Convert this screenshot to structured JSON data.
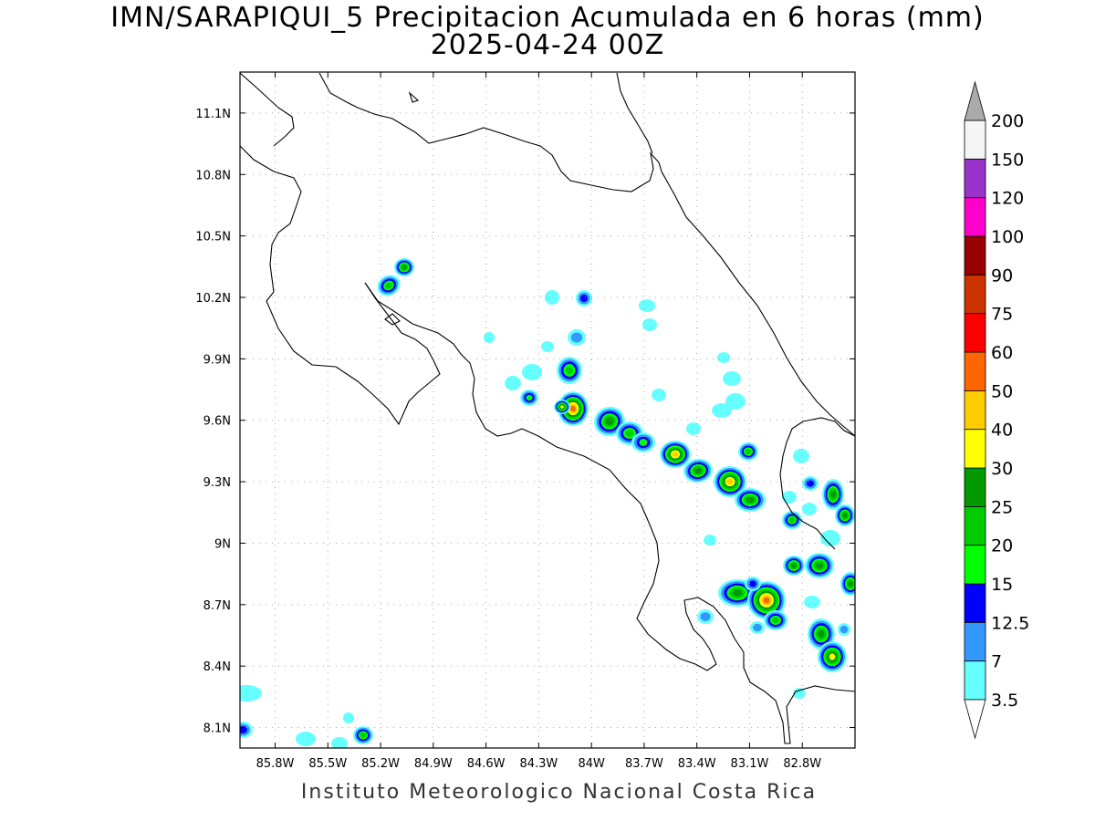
{
  "title": {
    "line1": "IMN/SARAPIQUI_5 Precipitacion Acumulada en 6 horas (mm)",
    "line2": "2025-04-24 00Z"
  },
  "footer": "Instituto Meteorologico Nacional Costa Rica",
  "map": {
    "lon_range": [
      -86.0,
      -82.5
    ],
    "lat_range": [
      8.0,
      11.3
    ],
    "lon_ticks": [
      {
        "value": -85.8,
        "label": "85.8W"
      },
      {
        "value": -85.5,
        "label": "85.5W"
      },
      {
        "value": -85.2,
        "label": "85.2W"
      },
      {
        "value": -84.9,
        "label": "84.9W"
      },
      {
        "value": -84.6,
        "label": "84.6W"
      },
      {
        "value": -84.3,
        "label": "84.3W"
      },
      {
        "value": -84.0,
        "label": "84W"
      },
      {
        "value": -83.7,
        "label": "83.7W"
      },
      {
        "value": -83.4,
        "label": "83.4W"
      },
      {
        "value": -83.1,
        "label": "83.1W"
      },
      {
        "value": -82.8,
        "label": "82.8W"
      }
    ],
    "lat_ticks": [
      {
        "value": 8.1,
        "label": "8.1N"
      },
      {
        "value": 8.4,
        "label": "8.4N"
      },
      {
        "value": 8.7,
        "label": "8.7N"
      },
      {
        "value": 9.0,
        "label": "9N"
      },
      {
        "value": 9.3,
        "label": "9.3N"
      },
      {
        "value": 9.6,
        "label": "9.6N"
      },
      {
        "value": 9.9,
        "label": "9.9N"
      },
      {
        "value": 10.2,
        "label": "10.2N"
      },
      {
        "value": 10.5,
        "label": "10.5N"
      },
      {
        "value": 10.8,
        "label": "10.8N"
      },
      {
        "value": 11.1,
        "label": "11.1N"
      }
    ],
    "grid": true
  },
  "colorbar": {
    "levels": [
      "3.5",
      "7",
      "12.5",
      "15",
      "20",
      "25",
      "30",
      "40",
      "50",
      "60",
      "75",
      "90",
      "100",
      "120",
      "150",
      "200"
    ],
    "colors": [
      "#66ffff",
      "#3399ff",
      "#0000ff",
      "#00ff00",
      "#00cc00",
      "#009900",
      "#ffff00",
      "#ffcc00",
      "#ff6600",
      "#ff0000",
      "#cc3300",
      "#990000",
      "#ff00cc",
      "#9933cc",
      "#f5f5f5"
    ],
    "over_color": "#aaaaaa",
    "under_color": "#ffffff"
  }
}
